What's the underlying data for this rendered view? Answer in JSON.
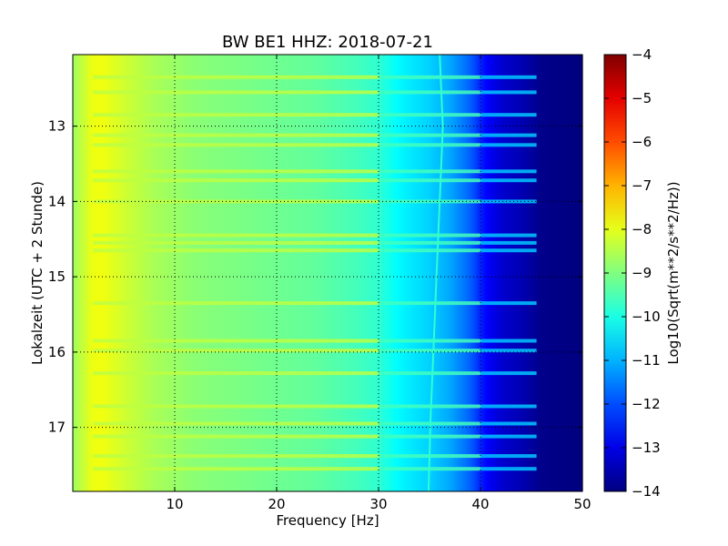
{
  "chart_data": {
    "type": "heatmap",
    "title": "BW BE1 HHZ: 2018-07-21",
    "xlabel": "Frequency [Hz]",
    "ylabel": "Lokalzeit (UTC + 2 Stunde)",
    "xlim": [
      0,
      50
    ],
    "ylim": [
      17.85,
      12.05
    ],
    "y_inverted": true,
    "grid": true,
    "x_ticks": [
      10,
      20,
      30,
      40,
      50
    ],
    "y_ticks": [
      13,
      14,
      15,
      16,
      17
    ],
    "colorbar": {
      "label": "Log10(Sqrt(m**2/s**2/Hz))",
      "range": [
        -14,
        -4
      ],
      "ticks": [
        -14,
        -13,
        -12,
        -11,
        -10,
        -9,
        -8,
        -7,
        -6,
        -5,
        -4
      ],
      "colormap": "jet"
    },
    "spectrum_profile": {
      "frequency_hz": [
        0,
        2,
        3,
        5,
        8,
        12,
        18,
        24,
        28,
        30,
        32,
        35,
        37,
        39,
        40.5,
        42,
        44,
        45,
        46,
        50
      ],
      "log10_amplitude": [
        -8.7,
        -7.9,
        -7.9,
        -8.2,
        -8.6,
        -8.9,
        -9.1,
        -9.3,
        -9.6,
        -9.8,
        -10.3,
        -10.7,
        -11.1,
        -11.8,
        -12.7,
        -13.2,
        -13.5,
        -13.7,
        -13.9,
        -14.0
      ]
    },
    "horizontal_bands_hour": [
      12.35,
      12.55,
      12.85,
      13.12,
      13.25,
      13.6,
      13.72,
      14.0,
      14.45,
      14.55,
      14.65,
      15.35,
      15.85,
      15.98,
      16.28,
      16.72,
      16.95,
      17.12,
      17.38,
      17.55
    ],
    "tone_line_hz": [
      36,
      36.3,
      36,
      35.7,
      35.4,
      35.1,
      34.9
    ]
  }
}
